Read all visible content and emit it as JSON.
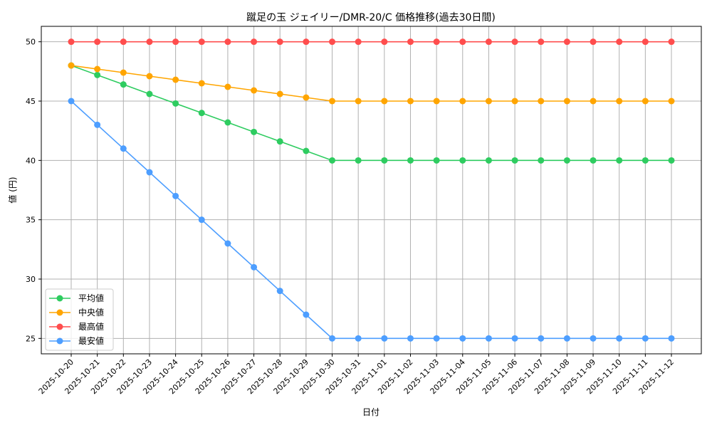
{
  "chart_data": {
    "type": "line",
    "title": "蹴足の玉 ジェイリー/DMR-20/C 価格推移(過去30日間)",
    "xlabel": "日付",
    "ylabel": "値 (円)",
    "ylim": [
      23.7,
      51.3
    ],
    "yticks": [
      25,
      30,
      35,
      40,
      45,
      50
    ],
    "grid": true,
    "legend_position": "lower left",
    "categories": [
      "2025-10-20",
      "2025-10-21",
      "2025-10-22",
      "2025-10-23",
      "2025-10-24",
      "2025-10-25",
      "2025-10-26",
      "2025-10-27",
      "2025-10-28",
      "2025-10-29",
      "2025-10-30",
      "2025-10-31",
      "2025-11-01",
      "2025-11-02",
      "2025-11-03",
      "2025-11-04",
      "2025-11-05",
      "2025-11-06",
      "2025-11-07",
      "2025-11-08",
      "2025-11-09",
      "2025-11-10",
      "2025-11-11",
      "2025-11-12"
    ],
    "series": [
      {
        "name": "平均値",
        "color": "#2ecc60",
        "values": [
          48,
          47.2,
          46.4,
          45.6,
          44.8,
          44.0,
          43.2,
          42.4,
          41.6,
          40.8,
          40,
          40,
          40,
          40,
          40,
          40,
          40,
          40,
          40,
          40,
          40,
          40,
          40,
          40
        ]
      },
      {
        "name": "中央値",
        "color": "#ffa500",
        "values": [
          48,
          47.7,
          47.4,
          47.1,
          46.8,
          46.5,
          46.2,
          45.9,
          45.6,
          45.3,
          45,
          45,
          45,
          45,
          45,
          45,
          45,
          45,
          45,
          45,
          45,
          45,
          45,
          45
        ]
      },
      {
        "name": "最高値",
        "color": "#ff4d4d",
        "values": [
          50,
          50,
          50,
          50,
          50,
          50,
          50,
          50,
          50,
          50,
          50,
          50,
          50,
          50,
          50,
          50,
          50,
          50,
          50,
          50,
          50,
          50,
          50,
          50
        ]
      },
      {
        "name": "最安値",
        "color": "#4d9eff",
        "values": [
          45,
          43,
          41,
          39,
          37,
          35,
          33,
          31,
          29,
          27,
          25,
          25,
          25,
          25,
          25,
          25,
          25,
          25,
          25,
          25,
          25,
          25,
          25,
          25
        ]
      }
    ]
  }
}
